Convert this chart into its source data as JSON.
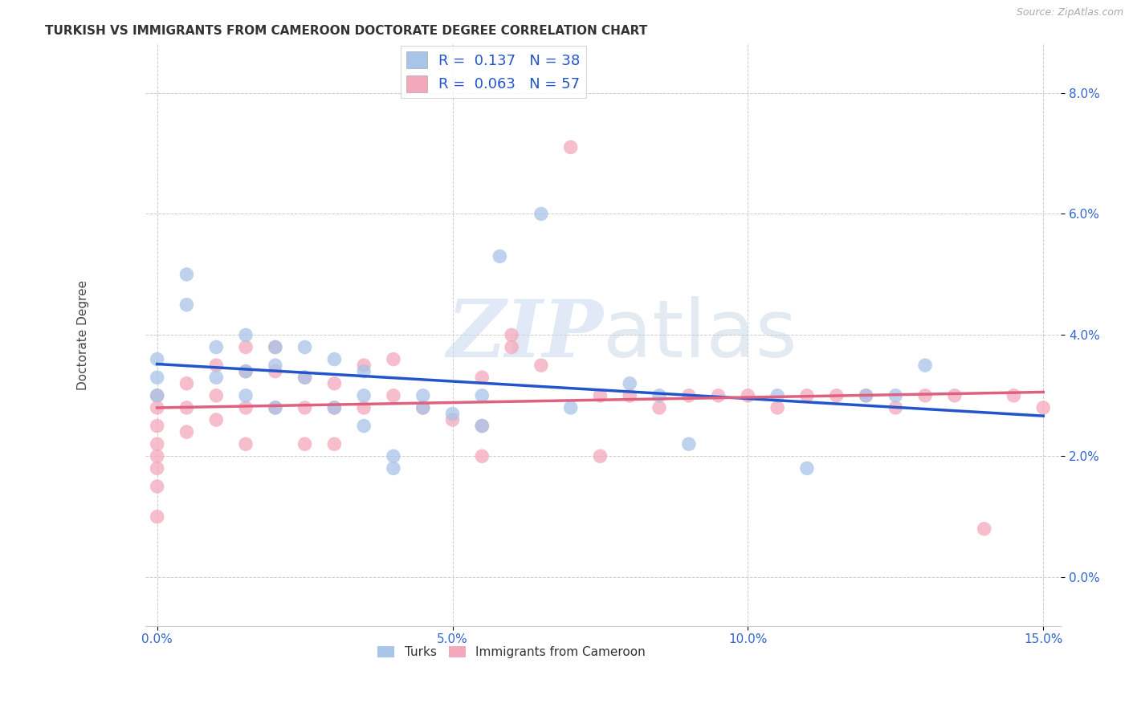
{
  "title": "TURKISH VS IMMIGRANTS FROM CAMEROON DOCTORATE DEGREE CORRELATION CHART",
  "source": "Source: ZipAtlas.com",
  "ylabel": "Doctorate Degree",
  "xlim": [
    0.0,
    0.15
  ],
  "ylim": [
    -0.005,
    0.088
  ],
  "legend1_R": "0.137",
  "legend1_N": "38",
  "legend2_R": "0.063",
  "legend2_N": "57",
  "blue_color": "#a8c4e8",
  "pink_color": "#f4a8bc",
  "blue_line_color": "#2255cc",
  "pink_line_color": "#e06080",
  "turks_x": [
    0.0,
    0.0,
    0.0,
    0.005,
    0.005,
    0.01,
    0.01,
    0.015,
    0.015,
    0.015,
    0.02,
    0.02,
    0.02,
    0.025,
    0.025,
    0.03,
    0.03,
    0.035,
    0.035,
    0.035,
    0.04,
    0.04,
    0.045,
    0.045,
    0.05,
    0.055,
    0.055,
    0.058,
    0.065,
    0.07,
    0.08,
    0.085,
    0.09,
    0.105,
    0.11,
    0.12,
    0.125,
    0.13
  ],
  "turks_y": [
    0.036,
    0.033,
    0.03,
    0.05,
    0.045,
    0.038,
    0.033,
    0.04,
    0.034,
    0.03,
    0.038,
    0.035,
    0.028,
    0.038,
    0.033,
    0.036,
    0.028,
    0.034,
    0.03,
    0.025,
    0.02,
    0.018,
    0.03,
    0.028,
    0.027,
    0.03,
    0.025,
    0.053,
    0.06,
    0.028,
    0.032,
    0.03,
    0.022,
    0.03,
    0.018,
    0.03,
    0.03,
    0.035
  ],
  "cameroon_x": [
    0.0,
    0.0,
    0.0,
    0.0,
    0.0,
    0.0,
    0.0,
    0.0,
    0.005,
    0.005,
    0.005,
    0.01,
    0.01,
    0.01,
    0.015,
    0.015,
    0.015,
    0.015,
    0.02,
    0.02,
    0.02,
    0.025,
    0.025,
    0.025,
    0.03,
    0.03,
    0.03,
    0.035,
    0.035,
    0.04,
    0.04,
    0.045,
    0.05,
    0.055,
    0.055,
    0.06,
    0.065,
    0.07,
    0.075,
    0.08,
    0.085,
    0.09,
    0.095,
    0.1,
    0.105,
    0.11,
    0.115,
    0.12,
    0.125,
    0.13,
    0.135,
    0.14,
    0.145,
    0.15,
    0.055,
    0.06,
    0.075
  ],
  "cameroon_y": [
    0.03,
    0.028,
    0.025,
    0.022,
    0.02,
    0.018,
    0.015,
    0.01,
    0.032,
    0.028,
    0.024,
    0.035,
    0.03,
    0.026,
    0.038,
    0.034,
    0.028,
    0.022,
    0.038,
    0.034,
    0.028,
    0.033,
    0.028,
    0.022,
    0.032,
    0.028,
    0.022,
    0.035,
    0.028,
    0.036,
    0.03,
    0.028,
    0.026,
    0.033,
    0.025,
    0.038,
    0.035,
    0.071,
    0.03,
    0.03,
    0.028,
    0.03,
    0.03,
    0.03,
    0.028,
    0.03,
    0.03,
    0.03,
    0.028,
    0.03,
    0.03,
    0.008,
    0.03,
    0.028,
    0.02,
    0.04,
    0.02
  ],
  "watermark_zip": "ZIP",
  "watermark_atlas": "atlas",
  "figsize": [
    14.06,
    8.92
  ],
  "dpi": 100
}
